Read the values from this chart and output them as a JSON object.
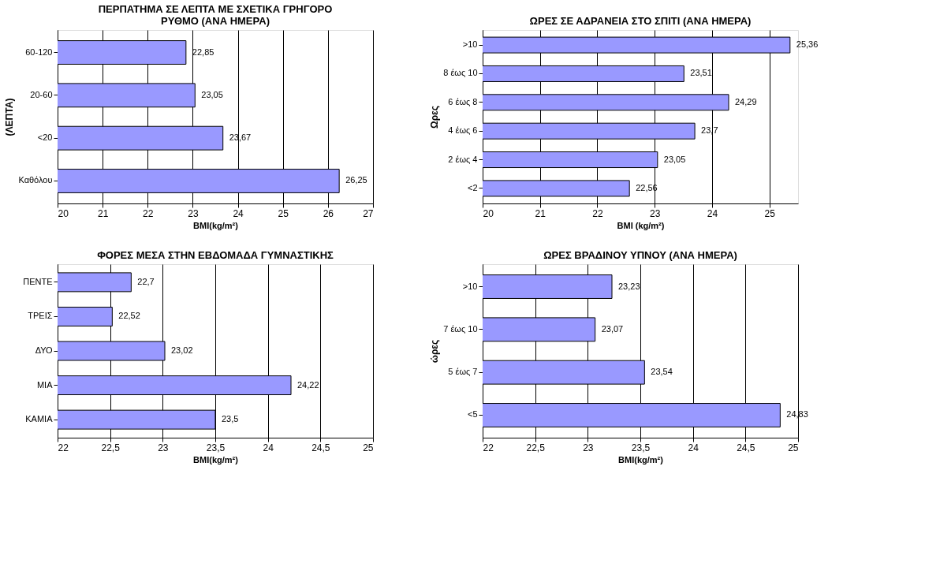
{
  "chart_data": [
    {
      "type": "bar",
      "orientation": "horizontal",
      "title": "ΠΕΡΠΑΤΗΜΑ ΣΕ ΛΕΠΤΑ  ΜΕ ΣΧΕΤΙΚΑ ΓΡΗΓΟΡΟ\nΡΥΘΜΟ (ΑΝΑ ΗΜΕΡΑ)",
      "xlabel": "BMI(kg/m²)",
      "ylabel": "(ΛΕΠΤΑ)",
      "categories": [
        "60-120",
        "20-60",
        "<20",
        "Καθόλου"
      ],
      "series": [
        {
          "color": "#9999ff",
          "values": [
            22.85,
            23.05,
            23.67,
            26.25
          ],
          "value_labels": [
            "22,85",
            "23,05",
            "23,67",
            "26,25"
          ]
        }
      ],
      "xlim": [
        20,
        27
      ],
      "xticks": [
        20,
        21,
        22,
        23,
        24,
        25,
        26,
        27
      ],
      "grid": "x"
    },
    {
      "type": "bar",
      "orientation": "horizontal",
      "title": "ΩΡΕΣ ΣΕ ΑΔΡΑΝΕΙΑ ΣΤΟ ΣΠΙΤΙ (ΑΝΑ ΗΜΕΡΑ)",
      "xlabel": "BMI (kg/m²)",
      "ylabel": "Ωρες",
      "categories": [
        ">10",
        "8 έως 10",
        "6 έως 8",
        "4 έως 6",
        "2 έως 4",
        "<2"
      ],
      "series": [
        {
          "color": "#9999ff",
          "values": [
            25.36,
            23.51,
            24.29,
            23.7,
            23.05,
            22.56
          ],
          "value_labels": [
            "25,36",
            "23,51",
            "24,29",
            "23,7",
            "23,05",
            "22,56"
          ]
        }
      ],
      "xlim": [
        20,
        25.5
      ],
      "xticks": [
        20,
        21,
        22,
        23,
        24,
        25
      ],
      "grid": "x"
    },
    {
      "type": "bar",
      "orientation": "horizontal",
      "title": "ΦΟΡΕΣ ΜΕΣΑ ΣΤΗΝ ΕΒΔΟΜΑΔΑ ΓΥΜΝΑΣΤΙΚΗΣ",
      "xlabel": "BMI(kg/m²)",
      "categories": [
        "ΠΕΝΤΕ",
        "ΤΡΕΙΣ",
        "ΔΥΟ",
        "ΜΙΑ",
        "ΚΑΜΙΑ"
      ],
      "series": [
        {
          "color": "#9999ff",
          "values": [
            22.7,
            22.52,
            23.02,
            24.22,
            23.5
          ],
          "value_labels": [
            "22,7",
            "22,52",
            "23,02",
            "24,22",
            "23,5"
          ]
        }
      ],
      "xlim": [
        22,
        25
      ],
      "xticks": [
        22,
        {
          "value": 22.5,
          "label": "22,5"
        },
        23,
        {
          "value": 23.5,
          "label": "23,5"
        },
        24,
        {
          "value": 24.5,
          "label": "24,5"
        },
        25
      ],
      "grid": "x"
    },
    {
      "type": "bar",
      "orientation": "horizontal",
      "title": "ΩΡΕΣ ΒΡΑΔΙΝΟΥ ΥΠΝΟΥ (ΑΝΑ ΗΜΕΡΑ)",
      "xlabel": "BMI(kg/m²)",
      "ylabel": "ώρες",
      "categories": [
        ">10",
        "7 έως 10",
        "5 έως 7",
        "<5"
      ],
      "series": [
        {
          "color": "#9999ff",
          "values": [
            23.23,
            23.07,
            23.54,
            24.83
          ],
          "value_labels": [
            "23,23",
            "23,07",
            "23,54",
            "24,83"
          ]
        }
      ],
      "xlim": [
        22,
        25
      ],
      "xticks": [
        22,
        {
          "value": 22.5,
          "label": "22,5"
        },
        23,
        {
          "value": 23.5,
          "label": "23,5"
        },
        24,
        {
          "value": 24.5,
          "label": "24,5"
        },
        25
      ],
      "grid": "x"
    }
  ]
}
